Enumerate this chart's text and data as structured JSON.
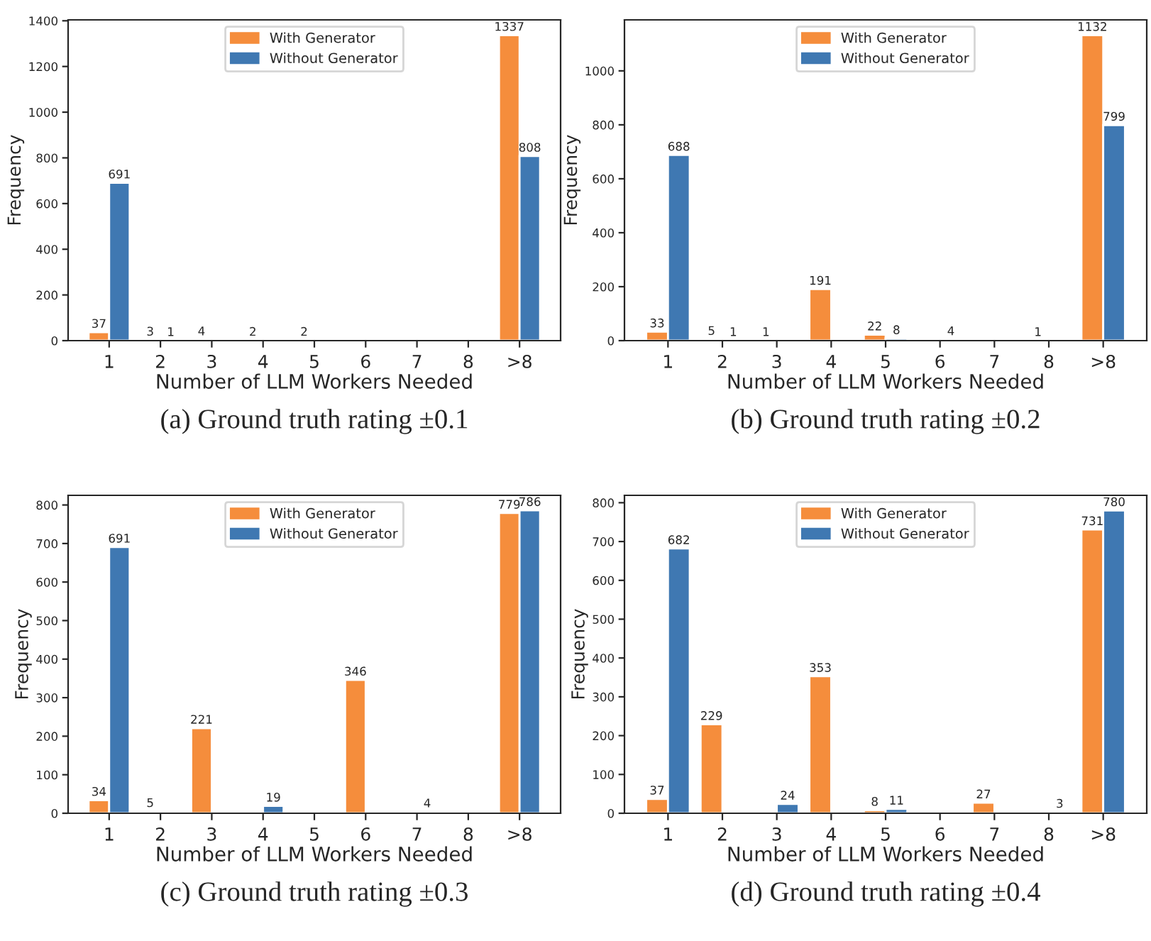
{
  "chart_data": [
    {
      "type": "bar",
      "title": "(a) Ground truth rating ±0.1",
      "xlabel": "Number of LLM Workers Needed",
      "ylabel": "Frequency",
      "categories": [
        "1",
        "2",
        "3",
        "4",
        "5",
        "6",
        "7",
        "8",
        ">8"
      ],
      "series": [
        {
          "name": "With Generator",
          "color": "#f58d3c",
          "values": [
            37,
            3,
            4,
            2,
            2,
            null,
            null,
            null,
            1337
          ]
        },
        {
          "name": "Without Generator",
          "color": "#3f78b2",
          "values": [
            691,
            1,
            null,
            null,
            null,
            null,
            null,
            null,
            808
          ]
        }
      ],
      "ylim": [
        0,
        1404
      ],
      "yticks": [
        0,
        200,
        400,
        600,
        800,
        1000,
        1200,
        1400
      ],
      "data_labels": true,
      "legend": "top",
      "grid": false
    },
    {
      "type": "bar",
      "title": "(b) Ground truth rating ±0.2",
      "xlabel": "Number of LLM Workers Needed",
      "ylabel": "Frequency",
      "categories": [
        "1",
        "2",
        "3",
        "4",
        "5",
        "6",
        "7",
        "8",
        ">8"
      ],
      "series": [
        {
          "name": "With Generator",
          "color": "#f58d3c",
          "values": [
            33,
            5,
            1,
            191,
            22,
            null,
            null,
            1,
            1132
          ]
        },
        {
          "name": "Without Generator",
          "color": "#3f78b2",
          "values": [
            688,
            1,
            null,
            null,
            8,
            4,
            null,
            null,
            799
          ]
        }
      ],
      "ylim": [
        0,
        1189
      ],
      "yticks": [
        0,
        200,
        400,
        600,
        800,
        1000
      ],
      "data_labels": true,
      "legend": "top",
      "grid": false
    },
    {
      "type": "bar",
      "title": "(c) Ground truth rating ±0.3",
      "xlabel": "Number of LLM Workers Needed",
      "ylabel": "Frequency",
      "categories": [
        "1",
        "2",
        "3",
        "4",
        "5",
        "6",
        "7",
        "8",
        ">8"
      ],
      "series": [
        {
          "name": "With Generator",
          "color": "#f58d3c",
          "values": [
            34,
            5,
            221,
            null,
            null,
            346,
            null,
            null,
            779
          ]
        },
        {
          "name": "Without Generator",
          "color": "#3f78b2",
          "values": [
            691,
            null,
            null,
            19,
            null,
            null,
            4,
            null,
            786
          ]
        }
      ],
      "ylim": [
        0,
        825
      ],
      "yticks": [
        0,
        100,
        200,
        300,
        400,
        500,
        600,
        700,
        800
      ],
      "data_labels": true,
      "legend": "top",
      "grid": false
    },
    {
      "type": "bar",
      "title": "(d) Ground truth rating ±0.4",
      "xlabel": "Number of LLM Workers Needed",
      "ylabel": "Frequency",
      "categories": [
        "1",
        "2",
        "3",
        "4",
        "5",
        "6",
        "7",
        "8",
        ">8"
      ],
      "series": [
        {
          "name": "With Generator",
          "color": "#f58d3c",
          "values": [
            37,
            229,
            null,
            353,
            8,
            null,
            27,
            null,
            731
          ]
        },
        {
          "name": "Without Generator",
          "color": "#3f78b2",
          "values": [
            682,
            null,
            24,
            null,
            11,
            null,
            null,
            3,
            780
          ]
        }
      ],
      "ylim": [
        0,
        819
      ],
      "yticks": [
        0,
        100,
        200,
        300,
        400,
        500,
        600,
        700,
        800
      ],
      "data_labels": true,
      "legend": "top",
      "grid": false
    }
  ]
}
